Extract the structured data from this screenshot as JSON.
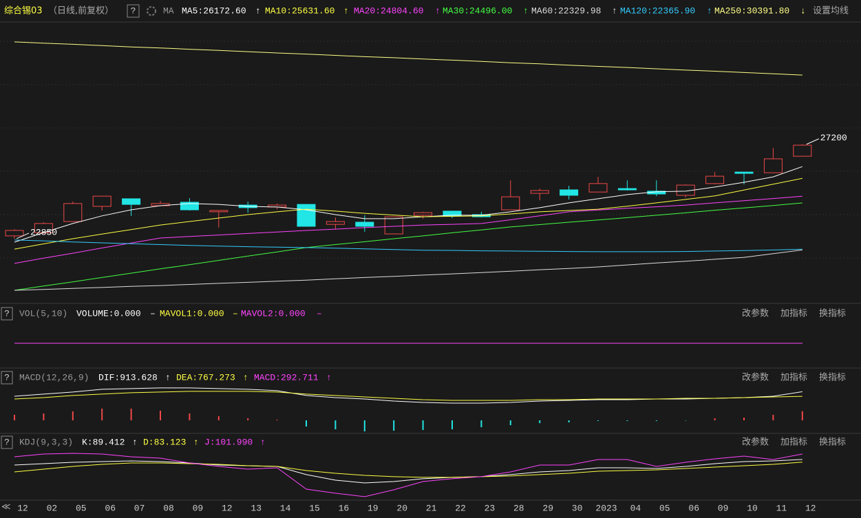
{
  "header": {
    "title": "综合锡03",
    "subtitle": "（日线,前复权）",
    "ma_label": "MA",
    "settings": "设置均线",
    "help": "?",
    "nav": "≪"
  },
  "chart_data": [
    {
      "type": "candlestick",
      "categories": [
        "12",
        "02",
        "05",
        "06",
        "07",
        "08",
        "09",
        "12",
        "13",
        "14",
        "15",
        "16",
        "19",
        "20",
        "21",
        "22",
        "23",
        "28",
        "29",
        "30",
        "2023",
        "04",
        "05",
        "06",
        "09",
        "10",
        "11",
        "12"
      ],
      "open": [
        22980,
        23130,
        23640,
        24340,
        24690,
        24370,
        24530,
        24090,
        24400,
        24310,
        24430,
        23510,
        23610,
        23070,
        23930,
        24120,
        23960,
        24180,
        24940,
        25100,
        25000,
        25160,
        25040,
        24850,
        25390,
        25920,
        25890,
        26650
      ],
      "high": [
        23290,
        23610,
        24560,
        24810,
        24690,
        24590,
        24720,
        24150,
        24560,
        24470,
        24430,
        23830,
        23930,
        23860,
        24090,
        24120,
        24090,
        25540,
        25160,
        25290,
        25700,
        25540,
        25540,
        25350,
        25920,
        25920,
        27030,
        27200
      ],
      "low": [
        22850,
        23070,
        23640,
        24150,
        23900,
        24340,
        24150,
        23360,
        24050,
        24210,
        23420,
        23290,
        23170,
        23070,
        23770,
        23800,
        23830,
        24180,
        24620,
        24660,
        25000,
        25070,
        24810,
        24750,
        25350,
        25350,
        25890,
        26650
      ],
      "close": [
        23230,
        23550,
        24470,
        24810,
        24430,
        24470,
        24180,
        24150,
        24280,
        24400,
        23420,
        23640,
        23420,
        23860,
        24050,
        23900,
        23860,
        24780,
        25070,
        24850,
        25390,
        25100,
        24910,
        25320,
        25730,
        25860,
        26530,
        27160
      ],
      "up_color": "#f04848",
      "down_color": "#22e5e5",
      "ylim": [
        19900,
        32900
      ],
      "annotations": [
        22850,
        27200
      ],
      "series": [
        {
          "name": "MA5:26172.60",
          "arrow": "↑",
          "color": "#ffffff",
          "values": [
            22690,
            23130,
            23550,
            23900,
            24180,
            24370,
            24470,
            24430,
            24340,
            24310,
            24180,
            23960,
            23770,
            23770,
            23860,
            23930,
            23930,
            24090,
            24280,
            24500,
            24690,
            24880,
            25010,
            25040,
            25230,
            25450,
            25700,
            26172.6
          ]
        },
        {
          "name": "MA10:25631.60",
          "arrow": "↑",
          "color": "#ffff44",
          "values": [
            22370,
            22610,
            22850,
            23060,
            23270,
            23480,
            23640,
            23800,
            23960,
            24090,
            24210,
            24120,
            24020,
            23940,
            23860,
            23880,
            23900,
            23990,
            24090,
            24150,
            24210,
            24350,
            24500,
            24660,
            24820,
            25090,
            25360,
            25631.6
          ]
        },
        {
          "name": "MA20:24804.60",
          "arrow": "↑",
          "color": "#ff44ff",
          "values": [
            21710,
            21950,
            22180,
            22420,
            22650,
            22880,
            22950,
            23020,
            23090,
            23160,
            23230,
            23290,
            23360,
            23420,
            23480,
            23510,
            23550,
            23720,
            23900,
            24090,
            24170,
            24250,
            24320,
            24400,
            24500,
            24600,
            24700,
            24804.6
          ]
        },
        {
          "name": "MA30:24496.00",
          "arrow": "↑",
          "color": "#44ff44",
          "values": [
            20470,
            20670,
            20860,
            21060,
            21260,
            21460,
            21650,
            21850,
            22050,
            22240,
            22440,
            22580,
            22710,
            22850,
            22980,
            23120,
            23250,
            23390,
            23500,
            23610,
            23710,
            23820,
            23930,
            24040,
            24160,
            24270,
            24380,
            24496
          ]
        },
        {
          "name": "MA60:22329.98",
          "arrow": "↑",
          "color": "#dddddd",
          "values": [
            20470,
            20510,
            20560,
            20600,
            20650,
            20690,
            20740,
            20790,
            20840,
            20890,
            20940,
            21000,
            21060,
            21110,
            21170,
            21230,
            21290,
            21350,
            21420,
            21480,
            21550,
            21640,
            21730,
            21810,
            21900,
            21990,
            22160,
            22329.98
          ]
        },
        {
          "name": "MA120:22365.90",
          "arrow": "↑",
          "color": "#33ccff",
          "values": [
            22790,
            22750,
            22700,
            22660,
            22620,
            22580,
            22540,
            22510,
            22480,
            22460,
            22440,
            22410,
            22380,
            22350,
            22320,
            22310,
            22290,
            22280,
            22270,
            22260,
            22250,
            22250,
            22250,
            22260,
            22280,
            22300,
            22330,
            22365.9
          ]
        },
        {
          "name": "MA250:30391.80",
          "arrow": "↓",
          "color": "#ffff88",
          "values": [
            31920,
            31860,
            31810,
            31750,
            31690,
            31640,
            31580,
            31530,
            31470,
            31410,
            31360,
            31300,
            31240,
            31190,
            31130,
            31080,
            31020,
            30960,
            30910,
            30850,
            30790,
            30740,
            30680,
            30620,
            30570,
            30510,
            30450,
            30391.8
          ]
        }
      ]
    },
    {
      "type": "line",
      "title": "VOL(5,10)",
      "buttons": [
        "改参数",
        "加指标",
        "换指标"
      ],
      "ylim": [
        -1,
        1
      ],
      "series": [
        {
          "name": "VOLUME:0.000",
          "arrow": "–",
          "color": "#ffffff",
          "values": [
            0,
            0,
            0,
            0,
            0,
            0,
            0,
            0,
            0,
            0,
            0,
            0,
            0,
            0,
            0,
            0,
            0,
            0,
            0,
            0,
            0,
            0,
            0,
            0,
            0,
            0,
            0,
            0
          ]
        },
        {
          "name": "MAVOL1:0.000",
          "arrow": "–",
          "color": "#ffff44",
          "values": [
            0,
            0,
            0,
            0,
            0,
            0,
            0,
            0,
            0,
            0,
            0,
            0,
            0,
            0,
            0,
            0,
            0,
            0,
            0,
            0,
            0,
            0,
            0,
            0,
            0,
            0,
            0,
            0
          ]
        },
        {
          "name": "MAVOL2:0.000",
          "arrow": "–",
          "color": "#ff44ff",
          "values": [
            0,
            0,
            0,
            0,
            0,
            0,
            0,
            0,
            0,
            0,
            0,
            0,
            0,
            0,
            0,
            0,
            0,
            0,
            0,
            0,
            0,
            0,
            0,
            0,
            0,
            0,
            0,
            0
          ]
        }
      ]
    },
    {
      "type": "macd",
      "title": "MACD(12,26,9)",
      "buttons": [
        "改参数",
        "加指标",
        "换指标"
      ],
      "ylim": [
        -350,
        1120
      ],
      "up_color": "#f04848",
      "down_color": "#22e5e5",
      "series": [
        {
          "name": "DIF:913.628",
          "arrow": "↑",
          "color": "#ffffff",
          "style": "line",
          "values": [
            770,
            836,
            902,
            990,
            1012,
            1034,
            1034,
            1012,
            990,
            946,
            792,
            726,
            682,
            616,
            572,
            550,
            550,
            572,
            616,
            638,
            660,
            660,
            682,
            682,
            704,
            726,
            770,
            913.628
          ]
        },
        {
          "name": "DEA:767.273",
          "arrow": "↑",
          "color": "#ffff44",
          "style": "line",
          "values": [
            682,
            726,
            792,
            836,
            880,
            902,
            924,
            924,
            924,
            902,
            836,
            792,
            748,
            704,
            660,
            638,
            638,
            638,
            660,
            660,
            682,
            682,
            682,
            704,
            704,
            726,
            748,
            767.273
          ]
        },
        {
          "name": "MACD:292.711",
          "arrow": "↑",
          "color": "#ff44ff",
          "style": "bar",
          "values": [
            176,
            220,
            286,
            374,
            374,
            308,
            220,
            132,
            66,
            22,
            -198,
            -286,
            -352,
            -330,
            -308,
            -286,
            -220,
            -154,
            -88,
            -66,
            -22,
            -22,
            -22,
            -10,
            66,
            88,
            176,
            292.711
          ]
        }
      ]
    },
    {
      "type": "line",
      "title": "KDJ(9,3,3)",
      "buttons": [
        "改参数",
        "加指标",
        "换指标"
      ],
      "ylim": [
        -5,
        118
      ],
      "series": [
        {
          "name": "K:89.412",
          "arrow": "↑",
          "color": "#ffffff",
          "values": [
            76.5,
            79.7,
            82.9,
            84.5,
            86.1,
            84.5,
            81.3,
            76.5,
            74.9,
            73.3,
            54.2,
            41.4,
            35.0,
            38.2,
            44.6,
            47.8,
            49.4,
            54.2,
            60.5,
            63.7,
            70.1,
            70.1,
            68.5,
            73.3,
            79.7,
            84.5,
            86.1,
            89.412
          ]
        },
        {
          "name": "D:83.123",
          "arrow": "↑",
          "color": "#ffff44",
          "values": [
            60.5,
            66.9,
            73.3,
            78.1,
            81.3,
            81.3,
            79.7,
            78.1,
            74.9,
            73.3,
            63.7,
            57.3,
            52.5,
            49.4,
            47.8,
            47.8,
            49.4,
            51.0,
            54.2,
            57.3,
            62.1,
            63.7,
            65.3,
            68.5,
            71.7,
            74.9,
            78.1,
            83.123
          ]
        },
        {
          "name": "J:101.990",
          "arrow": "↑",
          "color": "#ff44ff",
          "values": [
            95.7,
            102.1,
            103.7,
            102.1,
            95.7,
            92.5,
            81.3,
            73.3,
            66.9,
            70.1,
            20.6,
            11.0,
            3.0,
            19.0,
            38.2,
            44.6,
            49.4,
            60.5,
            76.5,
            76.5,
            89.3,
            89.3,
            73.3,
            82.9,
            90.9,
            97.3,
            89.3,
            101.99
          ]
        }
      ]
    }
  ]
}
